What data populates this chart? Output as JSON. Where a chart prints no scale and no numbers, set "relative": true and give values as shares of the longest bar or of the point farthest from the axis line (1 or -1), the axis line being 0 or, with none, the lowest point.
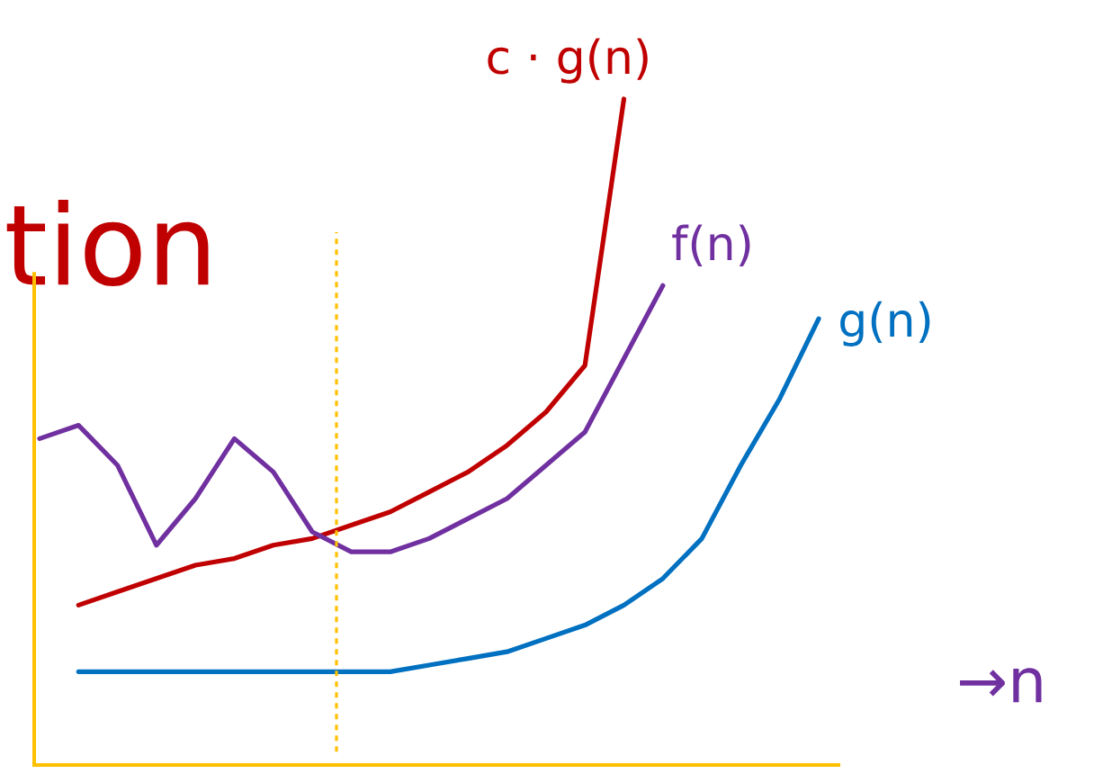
{
  "chart_data": {
    "type": "line",
    "title": "tion",
    "xlabel": "→n",
    "relative": true,
    "legend": false,
    "marker": "none",
    "line_style": "solid",
    "categories": [
      null,
      null,
      null,
      null,
      null,
      null,
      null,
      null,
      null,
      null,
      null,
      null,
      null,
      null,
      null,
      null,
      null,
      null,
      null,
      null,
      null
    ],
    "series": [
      {
        "name": "c · g(n)",
        "color": "#c00000",
        "values": [
          null,
          0.24,
          0.26,
          0.28,
          0.3,
          0.31,
          0.33,
          0.34,
          0.36,
          0.38,
          0.41,
          0.44,
          0.48,
          0.53,
          0.6,
          1.0,
          null,
          null,
          null,
          null,
          null
        ]
      },
      {
        "name": "f(n)",
        "color": "#7030a0",
        "values": [
          0.49,
          0.51,
          0.45,
          0.33,
          0.4,
          0.49,
          0.44,
          0.35,
          0.32,
          0.32,
          0.34,
          0.37,
          0.4,
          0.45,
          0.5,
          0.61,
          0.72,
          null,
          null,
          null,
          null
        ]
      },
      {
        "name": "g(n)",
        "color": "#0070c0",
        "values": [
          null,
          0.14,
          0.14,
          0.14,
          0.14,
          0.14,
          0.14,
          0.14,
          0.14,
          0.14,
          0.15,
          0.16,
          0.17,
          0.19,
          0.21,
          0.24,
          0.28,
          0.34,
          0.45,
          0.55,
          0.67
        ]
      }
    ],
    "ref_lines": [
      {
        "axis": "x",
        "color": "#ffc000",
        "line_style": "dashed"
      }
    ]
  }
}
